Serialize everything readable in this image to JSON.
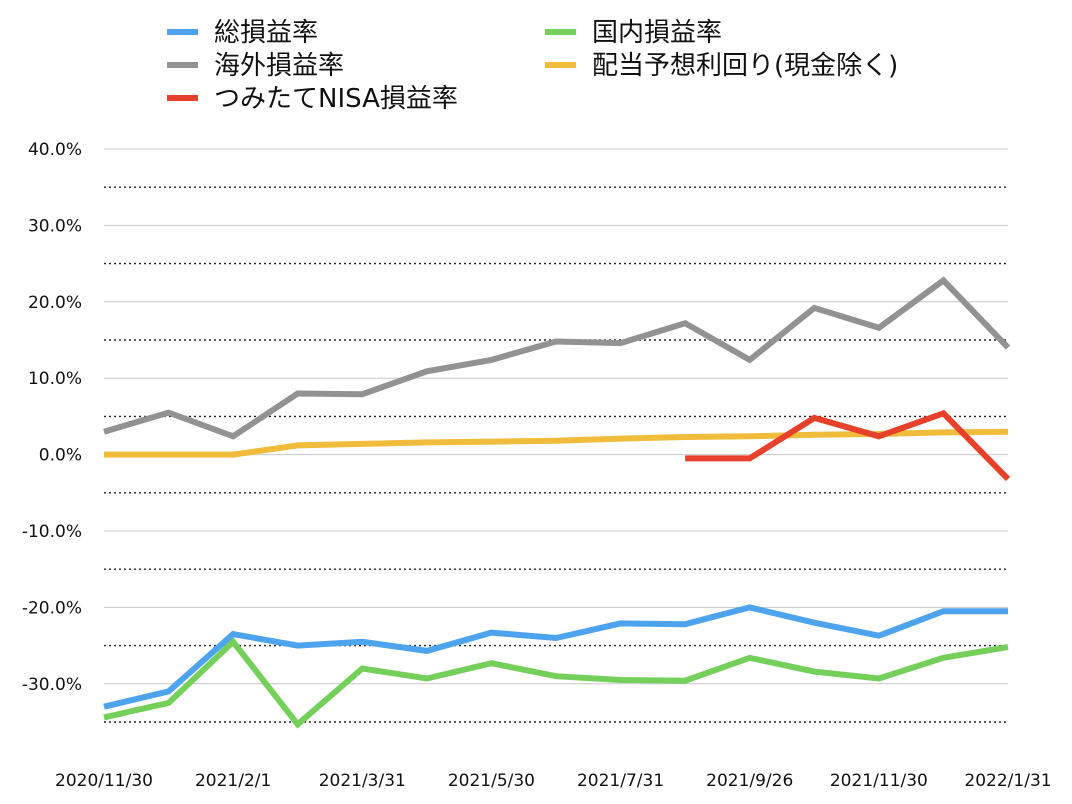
{
  "chart_data": {
    "type": "line",
    "title": "",
    "xlabel": "",
    "ylabel": "",
    "ylim": [
      -0.35,
      0.4
    ],
    "yticks": [
      {
        "value": 0.4,
        "label": "40.0%"
      },
      {
        "value": 0.3,
        "label": "30.0%"
      },
      {
        "value": 0.2,
        "label": "20.0%"
      },
      {
        "value": 0.1,
        "label": "10.0%"
      },
      {
        "value": 0.0,
        "label": "0.0%"
      },
      {
        "value": -0.1,
        "label": "-10.0%"
      },
      {
        "value": -0.2,
        "label": "-20.0%"
      },
      {
        "value": -0.3,
        "label": "-30.0%"
      }
    ],
    "minor_gridlines": [
      0.35,
      0.25,
      0.15,
      0.05,
      -0.05,
      -0.15,
      -0.25,
      -0.35
    ],
    "x_tick_labels": [
      {
        "index": 0,
        "label": "2020/11/30"
      },
      {
        "index": 2,
        "label": "2021/2/1"
      },
      {
        "index": 4,
        "label": "2021/3/31"
      },
      {
        "index": 6,
        "label": "2021/5/30"
      },
      {
        "index": 8,
        "label": "2021/7/31"
      },
      {
        "index": 10,
        "label": "2021/9/26"
      },
      {
        "index": 12,
        "label": "2021/11/30"
      },
      {
        "index": 14,
        "label": "2022/1/31"
      }
    ],
    "point_count": 15,
    "grid": true,
    "legend_position": "top",
    "series": [
      {
        "name": "総損益率",
        "color": "#4da3ee",
        "values": [
          -0.33,
          -0.31,
          -0.235,
          -0.25,
          -0.245,
          -0.257,
          -0.233,
          -0.24,
          -0.221,
          -0.222,
          -0.2,
          -0.22,
          -0.237,
          -0.205,
          -0.205
        ]
      },
      {
        "name": "国内損益率",
        "color": "#74d05a",
        "values": [
          -0.344,
          -0.325,
          -0.245,
          -0.353,
          -0.28,
          -0.293,
          -0.273,
          -0.29,
          -0.295,
          -0.296,
          -0.266,
          -0.284,
          -0.293,
          -0.266,
          -0.252
        ]
      },
      {
        "name": "海外損益率",
        "color": "#929292",
        "values": [
          0.03,
          0.055,
          0.024,
          0.08,
          0.079,
          0.109,
          0.124,
          0.148,
          0.146,
          0.172,
          0.124,
          0.192,
          0.166,
          0.228,
          0.14
        ]
      },
      {
        "name": "配当予想利回り(現金除く)",
        "color": "#f0bc3c",
        "values": [
          0.0,
          0.0,
          0.0,
          0.012,
          0.014,
          0.016,
          0.017,
          0.018,
          0.021,
          0.023,
          0.024,
          0.026,
          0.027,
          0.029,
          0.03
        ]
      },
      {
        "name": "つみたてNISA損益率",
        "color": "#e8412b",
        "values": [
          null,
          null,
          null,
          null,
          null,
          null,
          null,
          null,
          null,
          -0.005,
          -0.005,
          0.048,
          0.024,
          0.054,
          -0.032
        ]
      }
    ]
  }
}
